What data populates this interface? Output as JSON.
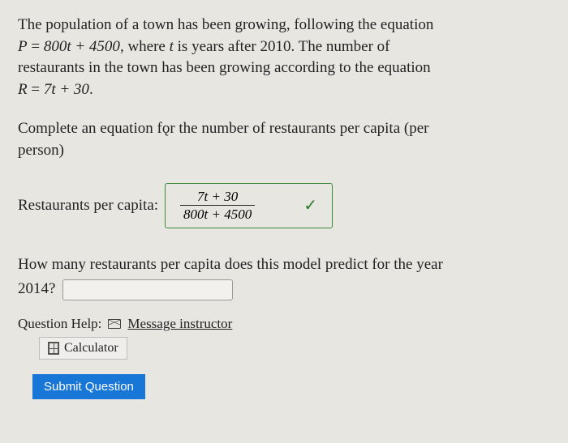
{
  "problem": {
    "line1": "The population of a town has been growing, following the equation",
    "eq1_lhs": "P",
    "eq1_rhs": "800t + 4500",
    "eq1_tail": ", where ",
    "eq1_var": "t",
    "eq1_after": " is years after 2010. The number of",
    "line3": "restaurants in the town has been growing according to the equation",
    "eq2_lhs": "R",
    "eq2_rhs": "7t + 30",
    "eq2_tail": "."
  },
  "prompt": {
    "text1": "Complete an equation f",
    "text2": "r the number of restaurants per capita (per",
    "text3": "person)"
  },
  "answer1": {
    "label": "Restaurants per capita:",
    "numerator": "7t + 30",
    "denominator": "800t + 4500",
    "correct": true
  },
  "question2": {
    "text": "How many restaurants per capita does this model predict for the year",
    "year": "2014?",
    "value": ""
  },
  "help": {
    "label": "Question Help:",
    "message_label": "Message instructor",
    "calculator_label": "Calculator"
  },
  "submit": {
    "label": "Submit Question"
  },
  "colors": {
    "background": "#e8e6e1",
    "text": "#222222",
    "correct_border": "#3a8a3a",
    "check": "#2a7a2a",
    "submit_bg": "#1776d6",
    "submit_text": "#ffffff",
    "input_border": "#999999"
  }
}
